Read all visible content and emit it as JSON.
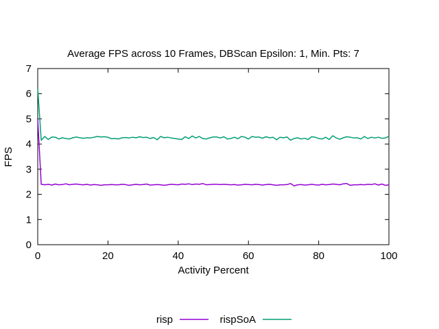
{
  "chart_data": {
    "type": "line",
    "title": "Average FPS across 10 Frames, DBScan Epsilon: 1, Min. Pts: 7",
    "xlabel": "Activity Percent",
    "ylabel": "FPS",
    "xlim": [
      0,
      100
    ],
    "ylim": [
      0,
      7
    ],
    "xticks": [
      "0",
      "20",
      "40",
      "60",
      "80",
      "100"
    ],
    "yticks": [
      "0",
      "1",
      "2",
      "3",
      "4",
      "5",
      "6",
      "7"
    ],
    "grid": false,
    "legend": "bottom-center",
    "x": [
      0,
      1,
      2,
      3,
      4,
      5,
      6,
      7,
      8,
      9,
      10,
      11,
      12,
      13,
      14,
      15,
      16,
      17,
      18,
      19,
      20,
      21,
      22,
      23,
      24,
      25,
      26,
      27,
      28,
      29,
      30,
      31,
      32,
      33,
      34,
      35,
      36,
      37,
      38,
      39,
      40,
      41,
      42,
      43,
      44,
      45,
      46,
      47,
      48,
      49,
      50,
      51,
      52,
      53,
      54,
      55,
      56,
      57,
      58,
      59,
      60,
      61,
      62,
      63,
      64,
      65,
      66,
      67,
      68,
      69,
      70,
      71,
      72,
      73,
      74,
      75,
      76,
      77,
      78,
      79,
      80,
      81,
      82,
      83,
      84,
      85,
      86,
      87,
      88,
      89,
      90,
      91,
      92,
      93,
      94,
      95,
      96,
      97,
      98,
      99,
      100
    ],
    "series": [
      {
        "name": "risp",
        "color": "#9400d3",
        "values": [
          5.0,
          2.4,
          2.38,
          2.4,
          2.37,
          2.41,
          2.38,
          2.39,
          2.42,
          2.38,
          2.4,
          2.41,
          2.39,
          2.38,
          2.4,
          2.37,
          2.39,
          2.38,
          2.36,
          2.38,
          2.38,
          2.39,
          2.38,
          2.38,
          2.4,
          2.39,
          2.36,
          2.38,
          2.4,
          2.38,
          2.39,
          2.41,
          2.37,
          2.38,
          2.39,
          2.38,
          2.36,
          2.38,
          2.4,
          2.39,
          2.38,
          2.41,
          2.4,
          2.42,
          2.39,
          2.41,
          2.4,
          2.43,
          2.38,
          2.39,
          2.4,
          2.4,
          2.39,
          2.4,
          2.39,
          2.38,
          2.39,
          2.37,
          2.38,
          2.4,
          2.39,
          2.38,
          2.4,
          2.39,
          2.37,
          2.39,
          2.4,
          2.38,
          2.36,
          2.38,
          2.38,
          2.39,
          2.43,
          2.34,
          2.38,
          2.39,
          2.37,
          2.38,
          2.4,
          2.38,
          2.37,
          2.4,
          2.38,
          2.39,
          2.41,
          2.4,
          2.38,
          2.42,
          2.43,
          2.36,
          2.38,
          2.38,
          2.39,
          2.38,
          2.4,
          2.39,
          2.42,
          2.37,
          2.41,
          2.36,
          2.38
        ]
      },
      {
        "name": "rispSoA",
        "color": "#009e73",
        "values": [
          6.2,
          4.15,
          4.3,
          4.18,
          4.28,
          4.27,
          4.2,
          4.25,
          4.22,
          4.2,
          4.25,
          4.28,
          4.25,
          4.23,
          4.25,
          4.24,
          4.27,
          4.3,
          4.28,
          4.29,
          4.27,
          4.21,
          4.22,
          4.2,
          4.25,
          4.26,
          4.24,
          4.27,
          4.25,
          4.29,
          4.26,
          4.27,
          4.22,
          4.26,
          4.17,
          4.3,
          4.25,
          4.27,
          4.24,
          4.22,
          4.2,
          4.18,
          4.29,
          4.22,
          4.32,
          4.24,
          4.3,
          4.22,
          4.2,
          4.25,
          4.28,
          4.28,
          4.24,
          4.29,
          4.2,
          4.22,
          4.27,
          4.21,
          4.3,
          4.27,
          4.2,
          4.3,
          4.27,
          4.28,
          4.23,
          4.29,
          4.25,
          4.27,
          4.17,
          4.27,
          4.25,
          4.28,
          4.15,
          4.22,
          4.25,
          4.2,
          4.23,
          4.18,
          4.29,
          4.27,
          4.22,
          4.2,
          4.27,
          4.18,
          4.33,
          4.24,
          4.19,
          4.25,
          4.29,
          4.27,
          4.24,
          4.25,
          4.2,
          4.3,
          4.22,
          4.27,
          4.24,
          4.27,
          4.23,
          4.24,
          4.31
        ]
      }
    ]
  }
}
